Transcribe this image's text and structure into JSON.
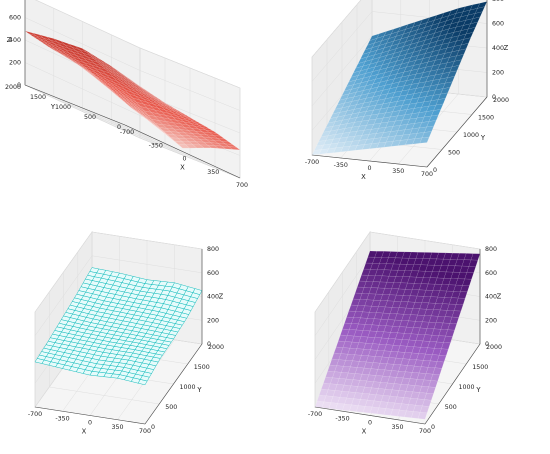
{
  "chart_data": [
    {
      "type": "surface3d",
      "color_style": "gradient-red",
      "colors": [
        "#f6d5cf",
        "#e8574a",
        "#b52b22"
      ],
      "xlabel": "X",
      "ylabel": "Y",
      "zlabel": "Z",
      "xlim": [
        -700,
        700
      ],
      "ylim": [
        0,
        2000
      ],
      "zlim": [
        0,
        800
      ],
      "xticks": [
        "-700",
        "-350",
        "0",
        "350",
        "700"
      ],
      "yticks": [
        "0",
        "500",
        "1000",
        "1500",
        "2000"
      ],
      "zticks": [
        "0",
        "200",
        "400",
        "600",
        "800"
      ],
      "view": "azim -45",
      "y_samples": [
        0,
        500,
        1000,
        1500,
        2000
      ],
      "x_samples": [
        -700,
        -350,
        0,
        350,
        700
      ],
      "z_grid": [
        [
          200,
          120,
          30,
          150,
          250
        ],
        [
          300,
          200,
          140,
          230,
          320
        ],
        [
          380,
          320,
          300,
          340,
          360
        ],
        [
          420,
          410,
          450,
          420,
          400
        ],
        [
          480,
          530,
          560,
          520,
          460
        ]
      ]
    },
    {
      "type": "surface3d",
      "color_style": "gradient-blue",
      "colors": [
        "#e6f0f8",
        "#4e9fd0",
        "#0a3b66"
      ],
      "xlabel": "X",
      "ylabel": "Y",
      "zlabel": "Z",
      "xlim": [
        -700,
        700
      ],
      "ylim": [
        0,
        2000
      ],
      "zlim": [
        0,
        800
      ],
      "xticks": [
        "-700",
        "-350",
        "0",
        "350",
        "700"
      ],
      "yticks": [
        "0",
        "500",
        "1000",
        "1500",
        "2000"
      ],
      "zticks": [
        "0",
        "200",
        "400",
        "600",
        "800"
      ],
      "view": "azim -60",
      "y_samples": [
        0,
        500,
        1000,
        1500,
        2000
      ],
      "x_samples": [
        -700,
        -350,
        0,
        350,
        700
      ],
      "z_grid": [
        [
          0,
          50,
          100,
          150,
          200
        ],
        [
          100,
          170,
          230,
          290,
          350
        ],
        [
          200,
          280,
          360,
          430,
          500
        ],
        [
          300,
          390,
          480,
          570,
          650
        ],
        [
          400,
          500,
          600,
          700,
          780
        ]
      ]
    },
    {
      "type": "surface3d",
      "color_style": "wireframe-cyan",
      "colors": [
        "#00d8d8",
        "#00c8c8",
        "#00b5b5"
      ],
      "xlabel": "X",
      "ylabel": "Y",
      "zlabel": "Z",
      "xlim": [
        -700,
        700
      ],
      "ylim": [
        0,
        2000
      ],
      "zlim": [
        0,
        800
      ],
      "xticks": [
        "-700",
        "-350",
        "0",
        "350",
        "700"
      ],
      "yticks": [
        "0",
        "500",
        "1000",
        "1500",
        "2000"
      ],
      "zticks": [
        "0",
        "200",
        "400",
        "600",
        "800"
      ],
      "view": "azim -60",
      "y_samples": [
        0,
        500,
        1000,
        1500,
        2000
      ],
      "x_samples": [
        -700,
        -350,
        0,
        350,
        700
      ],
      "z_grid": [
        [
          380,
          360,
          340,
          350,
          330
        ],
        [
          400,
          390,
          380,
          380,
          370
        ],
        [
          430,
          410,
          400,
          390,
          380
        ],
        [
          460,
          440,
          430,
          420,
          400
        ],
        [
          500,
          490,
          470,
          480,
          450
        ]
      ]
    },
    {
      "type": "surface3d",
      "color_style": "gradient-purple",
      "colors": [
        "#efe4f5",
        "#9a5bc2",
        "#4b126e"
      ],
      "xlabel": "X",
      "ylabel": "Y",
      "zlabel": "Z",
      "xlim": [
        -700,
        700
      ],
      "ylim": [
        0,
        2000
      ],
      "zlim": [
        0,
        800
      ],
      "xticks": [
        "-700",
        "-350",
        "0",
        "350",
        "700"
      ],
      "yticks": [
        "0",
        "500",
        "1000",
        "1500",
        "2000"
      ],
      "zticks": [
        "0",
        "200",
        "400",
        "600",
        "800"
      ],
      "view": "azim -60",
      "y_samples": [
        0,
        500,
        1000,
        1500,
        2000
      ],
      "x_samples": [
        -700,
        -350,
        0,
        350,
        700
      ],
      "z_grid": [
        [
          0,
          10,
          20,
          30,
          40
        ],
        [
          160,
          175,
          190,
          205,
          220
        ],
        [
          320,
          340,
          360,
          380,
          400
        ],
        [
          480,
          505,
          530,
          555,
          580
        ],
        [
          640,
          670,
          700,
          730,
          760
        ]
      ]
    }
  ]
}
